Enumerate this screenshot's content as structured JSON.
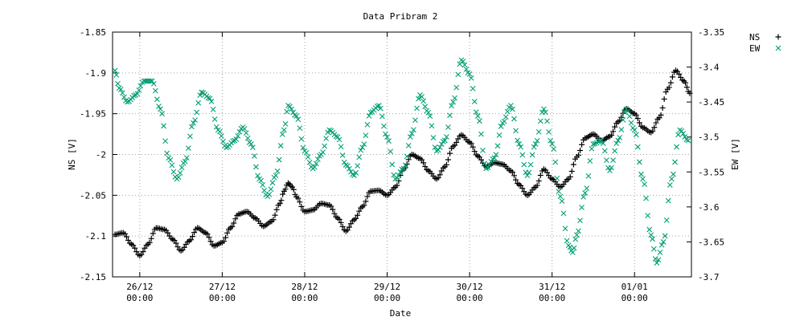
{
  "chart_data": {
    "type": "scatter",
    "title": "Data Pribram 2",
    "xlabel": "Date",
    "ylabel": "NS [V]",
    "y2label": "EW [V]",
    "xlim": [
      -0.03,
      6.99
    ],
    "ylim": [
      -2.15,
      -1.85
    ],
    "y2lim": [
      -3.7,
      -3.35
    ],
    "x_ticks": [
      {
        "pos": 0.3,
        "line1": "26/12",
        "line2": "00:00"
      },
      {
        "pos": 1.3,
        "line1": "27/12",
        "line2": "00:00"
      },
      {
        "pos": 2.3,
        "line1": "28/12",
        "line2": "00:00"
      },
      {
        "pos": 3.3,
        "line1": "29/12",
        "line2": "00:00"
      },
      {
        "pos": 4.3,
        "line1": "30/12",
        "line2": "00:00"
      },
      {
        "pos": 5.3,
        "line1": "31/12",
        "line2": "00:00"
      },
      {
        "pos": 6.3,
        "line1": "01/01",
        "line2": "00:00"
      }
    ],
    "y_ticks": [
      {
        "v": -1.85,
        "label": "-1.85"
      },
      {
        "v": -1.9,
        "label": "-1.9"
      },
      {
        "v": -1.95,
        "label": "-1.95"
      },
      {
        "v": -2.0,
        "label": "-2"
      },
      {
        "v": -2.05,
        "label": "-2.05"
      },
      {
        "v": -2.1,
        "label": "-2.1"
      },
      {
        "v": -2.15,
        "label": "-2.15"
      }
    ],
    "y2_ticks": [
      {
        "v": -3.35,
        "label": "-3.35"
      },
      {
        "v": -3.4,
        "label": "-3.4"
      },
      {
        "v": -3.45,
        "label": "-3.45"
      },
      {
        "v": -3.5,
        "label": "-3.5"
      },
      {
        "v": -3.55,
        "label": "-3.55"
      },
      {
        "v": -3.6,
        "label": "-3.6"
      },
      {
        "v": -3.65,
        "label": "-3.65"
      },
      {
        "v": -3.7,
        "label": "-3.7"
      }
    ],
    "grid": true,
    "legend_position": "outside-top-right",
    "series": [
      {
        "name": "NS",
        "axis": "y",
        "marker": "plus",
        "color": "#000000",
        "points": [
          [
            0.0,
            -2.098
          ],
          [
            0.1,
            -2.096
          ],
          [
            0.2,
            -2.11
          ],
          [
            0.3,
            -2.124
          ],
          [
            0.4,
            -2.11
          ],
          [
            0.5,
            -2.09
          ],
          [
            0.6,
            -2.092
          ],
          [
            0.7,
            -2.104
          ],
          [
            0.8,
            -2.118
          ],
          [
            0.9,
            -2.106
          ],
          [
            1.0,
            -2.09
          ],
          [
            1.1,
            -2.096
          ],
          [
            1.2,
            -2.112
          ],
          [
            1.3,
            -2.108
          ],
          [
            1.4,
            -2.09
          ],
          [
            1.5,
            -2.073
          ],
          [
            1.6,
            -2.07
          ],
          [
            1.7,
            -2.078
          ],
          [
            1.8,
            -2.088
          ],
          [
            1.9,
            -2.082
          ],
          [
            2.0,
            -2.06
          ],
          [
            2.05,
            -2.045
          ],
          [
            2.1,
            -2.035
          ],
          [
            2.15,
            -2.04
          ],
          [
            2.2,
            -2.052
          ],
          [
            2.3,
            -2.07
          ],
          [
            2.4,
            -2.068
          ],
          [
            2.5,
            -2.06
          ],
          [
            2.6,
            -2.062
          ],
          [
            2.7,
            -2.078
          ],
          [
            2.8,
            -2.094
          ],
          [
            2.9,
            -2.08
          ],
          [
            3.0,
            -2.064
          ],
          [
            3.1,
            -2.045
          ],
          [
            3.2,
            -2.044
          ],
          [
            3.3,
            -2.05
          ],
          [
            3.4,
            -2.04
          ],
          [
            3.5,
            -2.018
          ],
          [
            3.6,
            -2.0
          ],
          [
            3.7,
            -2.005
          ],
          [
            3.8,
            -2.02
          ],
          [
            3.9,
            -2.03
          ],
          [
            4.0,
            -2.015
          ],
          [
            4.1,
            -1.99
          ],
          [
            4.2,
            -1.976
          ],
          [
            4.3,
            -1.985
          ],
          [
            4.4,
            -2.002
          ],
          [
            4.5,
            -2.015
          ],
          [
            4.6,
            -2.01
          ],
          [
            4.7,
            -2.012
          ],
          [
            4.8,
            -2.02
          ],
          [
            4.9,
            -2.037
          ],
          [
            5.0,
            -2.05
          ],
          [
            5.1,
            -2.04
          ],
          [
            5.2,
            -2.018
          ],
          [
            5.3,
            -2.03
          ],
          [
            5.4,
            -2.04
          ],
          [
            5.5,
            -2.03
          ],
          [
            5.6,
            -2.003
          ],
          [
            5.7,
            -1.98
          ],
          [
            5.8,
            -1.975
          ],
          [
            5.9,
            -1.983
          ],
          [
            6.0,
            -1.978
          ],
          [
            6.1,
            -1.96
          ],
          [
            6.2,
            -1.944
          ],
          [
            6.3,
            -1.95
          ],
          [
            6.4,
            -1.967
          ],
          [
            6.5,
            -1.973
          ],
          [
            6.6,
            -1.955
          ],
          [
            6.7,
            -1.92
          ],
          [
            6.8,
            -1.897
          ],
          [
            6.9,
            -1.91
          ],
          [
            6.97,
            -1.925
          ]
        ]
      },
      {
        "name": "EW",
        "axis": "y2",
        "marker": "cross",
        "color": "#009e73",
        "points": [
          [
            0.0,
            -3.405
          ],
          [
            0.05,
            -3.43
          ],
          [
            0.15,
            -3.45
          ],
          [
            0.25,
            -3.44
          ],
          [
            0.35,
            -3.42
          ],
          [
            0.45,
            -3.42
          ],
          [
            0.55,
            -3.46
          ],
          [
            0.65,
            -3.53
          ],
          [
            0.75,
            -3.56
          ],
          [
            0.85,
            -3.535
          ],
          [
            0.95,
            -3.48
          ],
          [
            1.05,
            -3.436
          ],
          [
            1.15,
            -3.445
          ],
          [
            1.25,
            -3.49
          ],
          [
            1.35,
            -3.515
          ],
          [
            1.45,
            -3.505
          ],
          [
            1.55,
            -3.486
          ],
          [
            1.65,
            -3.51
          ],
          [
            1.75,
            -3.56
          ],
          [
            1.85,
            -3.585
          ],
          [
            1.95,
            -3.555
          ],
          [
            2.05,
            -3.49
          ],
          [
            2.1,
            -3.455
          ],
          [
            2.2,
            -3.47
          ],
          [
            2.3,
            -3.52
          ],
          [
            2.4,
            -3.545
          ],
          [
            2.5,
            -3.525
          ],
          [
            2.6,
            -3.49
          ],
          [
            2.7,
            -3.5
          ],
          [
            2.8,
            -3.54
          ],
          [
            2.9,
            -3.555
          ],
          [
            3.0,
            -3.515
          ],
          [
            3.1,
            -3.465
          ],
          [
            3.2,
            -3.455
          ],
          [
            3.3,
            -3.5
          ],
          [
            3.4,
            -3.56
          ],
          [
            3.5,
            -3.545
          ],
          [
            3.6,
            -3.495
          ],
          [
            3.7,
            -3.44
          ],
          [
            3.8,
            -3.465
          ],
          [
            3.9,
            -3.52
          ],
          [
            4.0,
            -3.505
          ],
          [
            4.1,
            -3.45
          ],
          [
            4.2,
            -3.39
          ],
          [
            4.3,
            -3.41
          ],
          [
            4.4,
            -3.47
          ],
          [
            4.5,
            -3.545
          ],
          [
            4.6,
            -3.53
          ],
          [
            4.7,
            -3.48
          ],
          [
            4.8,
            -3.455
          ],
          [
            4.9,
            -3.51
          ],
          [
            5.0,
            -3.555
          ],
          [
            5.1,
            -3.51
          ],
          [
            5.2,
            -3.46
          ],
          [
            5.3,
            -3.51
          ],
          [
            5.4,
            -3.585
          ],
          [
            5.5,
            -3.655
          ],
          [
            5.55,
            -3.665
          ],
          [
            5.6,
            -3.64
          ],
          [
            5.7,
            -3.58
          ],
          [
            5.8,
            -3.51
          ],
          [
            5.9,
            -3.505
          ],
          [
            6.0,
            -3.548
          ],
          [
            6.1,
            -3.505
          ],
          [
            6.2,
            -3.46
          ],
          [
            6.3,
            -3.49
          ],
          [
            6.4,
            -3.56
          ],
          [
            6.5,
            -3.64
          ],
          [
            6.57,
            -3.68
          ],
          [
            6.65,
            -3.65
          ],
          [
            6.75,
            -3.56
          ],
          [
            6.85,
            -3.49
          ],
          [
            6.95,
            -3.505
          ]
        ]
      }
    ]
  }
}
